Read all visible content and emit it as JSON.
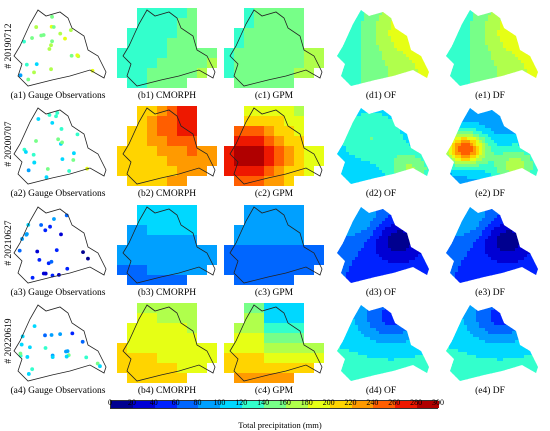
{
  "rows": [
    {
      "date": "# 20190712",
      "captions": [
        "(a1) Gauge Observations",
        "(b1) CMORPH",
        "(c1) GPM",
        "(d1) OF",
        "(e1) DF"
      ]
    },
    {
      "date": "# 20200707",
      "captions": [
        "(a2) Gauge Observations",
        "(b2) CMORPH",
        "(c2) GPM",
        "(d2) OF",
        "(e2) DF"
      ]
    },
    {
      "date": "# 20210627",
      "captions": [
        "(a3) Gauge Observations",
        "(b3) CMORPH",
        "(c3) GPM",
        "(d3) OF",
        "(e3) DF"
      ]
    },
    {
      "date": "# 20220619",
      "captions": [
        "(a4) Gauge Observations",
        "(b4) CMORPH",
        "(c4) GPM",
        "(d4) OF",
        "(e4) DF"
      ]
    }
  ],
  "colorbar": {
    "label": "Total precipitation (mm)",
    "ticks": [
      "0",
      "20",
      "40",
      "60",
      "80",
      "100",
      "120",
      "140",
      "160",
      "180",
      "200",
      "220",
      "240",
      "260",
      "280",
      "300"
    ],
    "colors": [
      "#00008f",
      "#0000d4",
      "#0022ff",
      "#0066ff",
      "#00a0ff",
      "#00d8ff",
      "#33ffcc",
      "#77ff88",
      "#b0ff4c",
      "#e6ff15",
      "#ffd400",
      "#ff9a00",
      "#ff5e00",
      "#ee1800",
      "#b00000"
    ]
  }
}
